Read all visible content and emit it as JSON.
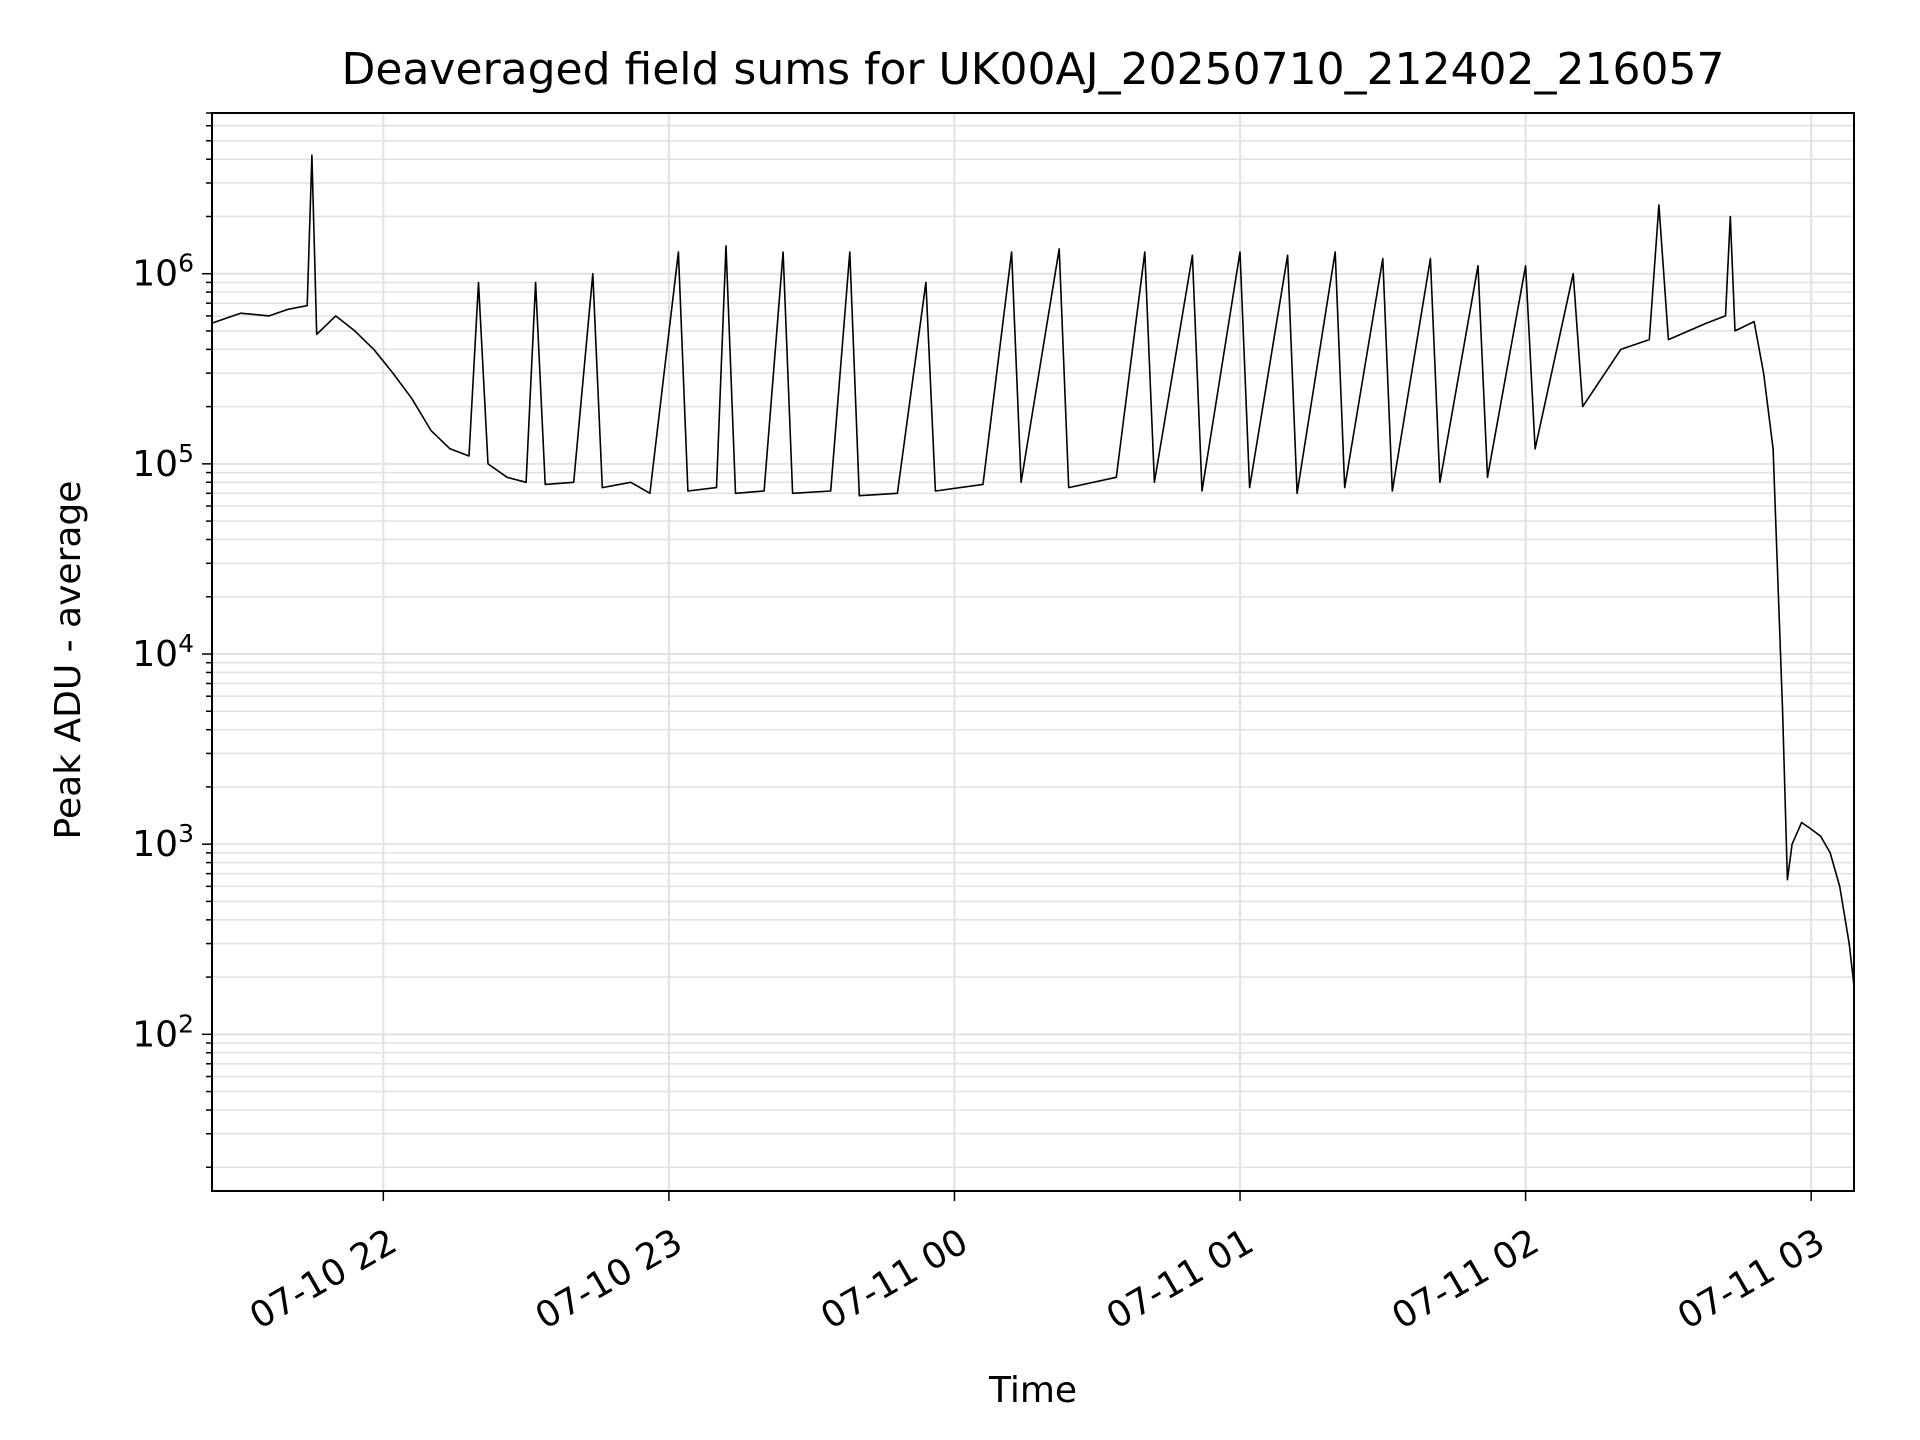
{
  "chart_data": {
    "type": "line",
    "title": "Deaveraged field sums for UK00AJ_20250710_212402_216057",
    "xlabel": "Time",
    "ylabel": "Peak ADU - average",
    "y_scale": "log",
    "ylim": [
      15,
      7000000
    ],
    "xlim": [
      "2025-07-10 21:24",
      "2025-07-11 03:09"
    ],
    "grid": true,
    "x_ticks": [
      {
        "t": "2025-07-10 22:00",
        "label": "07-10 22"
      },
      {
        "t": "2025-07-10 23:00",
        "label": "07-10 23"
      },
      {
        "t": "2025-07-11 00:00",
        "label": "07-11 00"
      },
      {
        "t": "2025-07-11 01:00",
        "label": "07-11 01"
      },
      {
        "t": "2025-07-11 02:00",
        "label": "07-11 02"
      },
      {
        "t": "2025-07-11 03:00",
        "label": "07-11 03"
      }
    ],
    "y_ticks": [
      {
        "v": 100,
        "base": "10",
        "exp": "2"
      },
      {
        "v": 1000,
        "base": "10",
        "exp": "3"
      },
      {
        "v": 10000,
        "base": "10",
        "exp": "4"
      },
      {
        "v": 100000,
        "base": "10",
        "exp": "5"
      },
      {
        "v": 1000000,
        "base": "10",
        "exp": "6"
      }
    ],
    "series": [
      {
        "color": "#000000",
        "points": [
          [
            "2025-07-10 21:24",
            550000
          ],
          [
            "2025-07-10 21:30",
            620000
          ],
          [
            "2025-07-10 21:36",
            600000
          ],
          [
            "2025-07-10 21:40",
            650000
          ],
          [
            "2025-07-10 21:44",
            680000
          ],
          [
            "2025-07-10 21:45",
            4200000
          ],
          [
            "2025-07-10 21:46",
            480000
          ],
          [
            "2025-07-10 21:50",
            600000
          ],
          [
            "2025-07-10 21:54",
            500000
          ],
          [
            "2025-07-10 21:58",
            400000
          ],
          [
            "2025-07-10 22:02",
            300000
          ],
          [
            "2025-07-10 22:06",
            220000
          ],
          [
            "2025-07-10 22:10",
            150000
          ],
          [
            "2025-07-10 22:14",
            120000
          ],
          [
            "2025-07-10 22:18",
            110000
          ],
          [
            "2025-07-10 22:20",
            900000
          ],
          [
            "2025-07-10 22:22",
            100000
          ],
          [
            "2025-07-10 22:26",
            85000
          ],
          [
            "2025-07-10 22:30",
            80000
          ],
          [
            "2025-07-10 22:32",
            900000
          ],
          [
            "2025-07-10 22:34",
            78000
          ],
          [
            "2025-07-10 22:40",
            80000
          ],
          [
            "2025-07-10 22:44",
            1000000
          ],
          [
            "2025-07-10 22:46",
            75000
          ],
          [
            "2025-07-10 22:52",
            80000
          ],
          [
            "2025-07-10 22:56",
            70000
          ],
          [
            "2025-07-10 23:02",
            1300000
          ],
          [
            "2025-07-10 23:04",
            72000
          ],
          [
            "2025-07-10 23:10",
            75000
          ],
          [
            "2025-07-10 23:12",
            1400000
          ],
          [
            "2025-07-10 23:14",
            70000
          ],
          [
            "2025-07-10 23:20",
            72000
          ],
          [
            "2025-07-10 23:24",
            1300000
          ],
          [
            "2025-07-10 23:26",
            70000
          ],
          [
            "2025-07-10 23:34",
            72000
          ],
          [
            "2025-07-10 23:38",
            1300000
          ],
          [
            "2025-07-10 23:40",
            68000
          ],
          [
            "2025-07-10 23:48",
            70000
          ],
          [
            "2025-07-10 23:54",
            900000
          ],
          [
            "2025-07-10 23:56",
            72000
          ],
          [
            "2025-07-11 00:06",
            78000
          ],
          [
            "2025-07-11 00:12",
            1300000
          ],
          [
            "2025-07-11 00:14",
            80000
          ],
          [
            "2025-07-11 00:22",
            1350000
          ],
          [
            "2025-07-11 00:24",
            75000
          ],
          [
            "2025-07-11 00:34",
            85000
          ],
          [
            "2025-07-11 00:40",
            1300000
          ],
          [
            "2025-07-11 00:42",
            80000
          ],
          [
            "2025-07-11 00:50",
            1250000
          ],
          [
            "2025-07-11 00:52",
            72000
          ],
          [
            "2025-07-11 01:00",
            1300000
          ],
          [
            "2025-07-11 01:02",
            75000
          ],
          [
            "2025-07-11 01:10",
            1250000
          ],
          [
            "2025-07-11 01:12",
            70000
          ],
          [
            "2025-07-11 01:20",
            1300000
          ],
          [
            "2025-07-11 01:22",
            75000
          ],
          [
            "2025-07-11 01:30",
            1200000
          ],
          [
            "2025-07-11 01:32",
            72000
          ],
          [
            "2025-07-11 01:40",
            1200000
          ],
          [
            "2025-07-11 01:42",
            80000
          ],
          [
            "2025-07-11 01:50",
            1100000
          ],
          [
            "2025-07-11 01:52",
            85000
          ],
          [
            "2025-07-11 02:00",
            1100000
          ],
          [
            "2025-07-11 02:02",
            120000
          ],
          [
            "2025-07-11 02:10",
            1000000
          ],
          [
            "2025-07-11 02:12",
            200000
          ],
          [
            "2025-07-11 02:20",
            400000
          ],
          [
            "2025-07-11 02:26",
            450000
          ],
          [
            "2025-07-11 02:28",
            2300000
          ],
          [
            "2025-07-11 02:30",
            450000
          ],
          [
            "2025-07-11 02:38",
            550000
          ],
          [
            "2025-07-11 02:42",
            600000
          ],
          [
            "2025-07-11 02:43",
            2000000
          ],
          [
            "2025-07-11 02:44",
            500000
          ],
          [
            "2025-07-11 02:48",
            560000
          ],
          [
            "2025-07-11 02:50",
            300000
          ],
          [
            "2025-07-11 02:52",
            120000
          ],
          [
            "2025-07-11 02:54",
            5000
          ],
          [
            "2025-07-11 02:55",
            650
          ],
          [
            "2025-07-11 02:56",
            1000
          ],
          [
            "2025-07-11 02:58",
            1300
          ],
          [
            "2025-07-11 03:00",
            1200
          ],
          [
            "2025-07-11 03:02",
            1100
          ],
          [
            "2025-07-11 03:04",
            900
          ],
          [
            "2025-07-11 03:06",
            600
          ],
          [
            "2025-07-11 03:08",
            300
          ],
          [
            "2025-07-11 03:09",
            180
          ]
        ]
      }
    ]
  }
}
